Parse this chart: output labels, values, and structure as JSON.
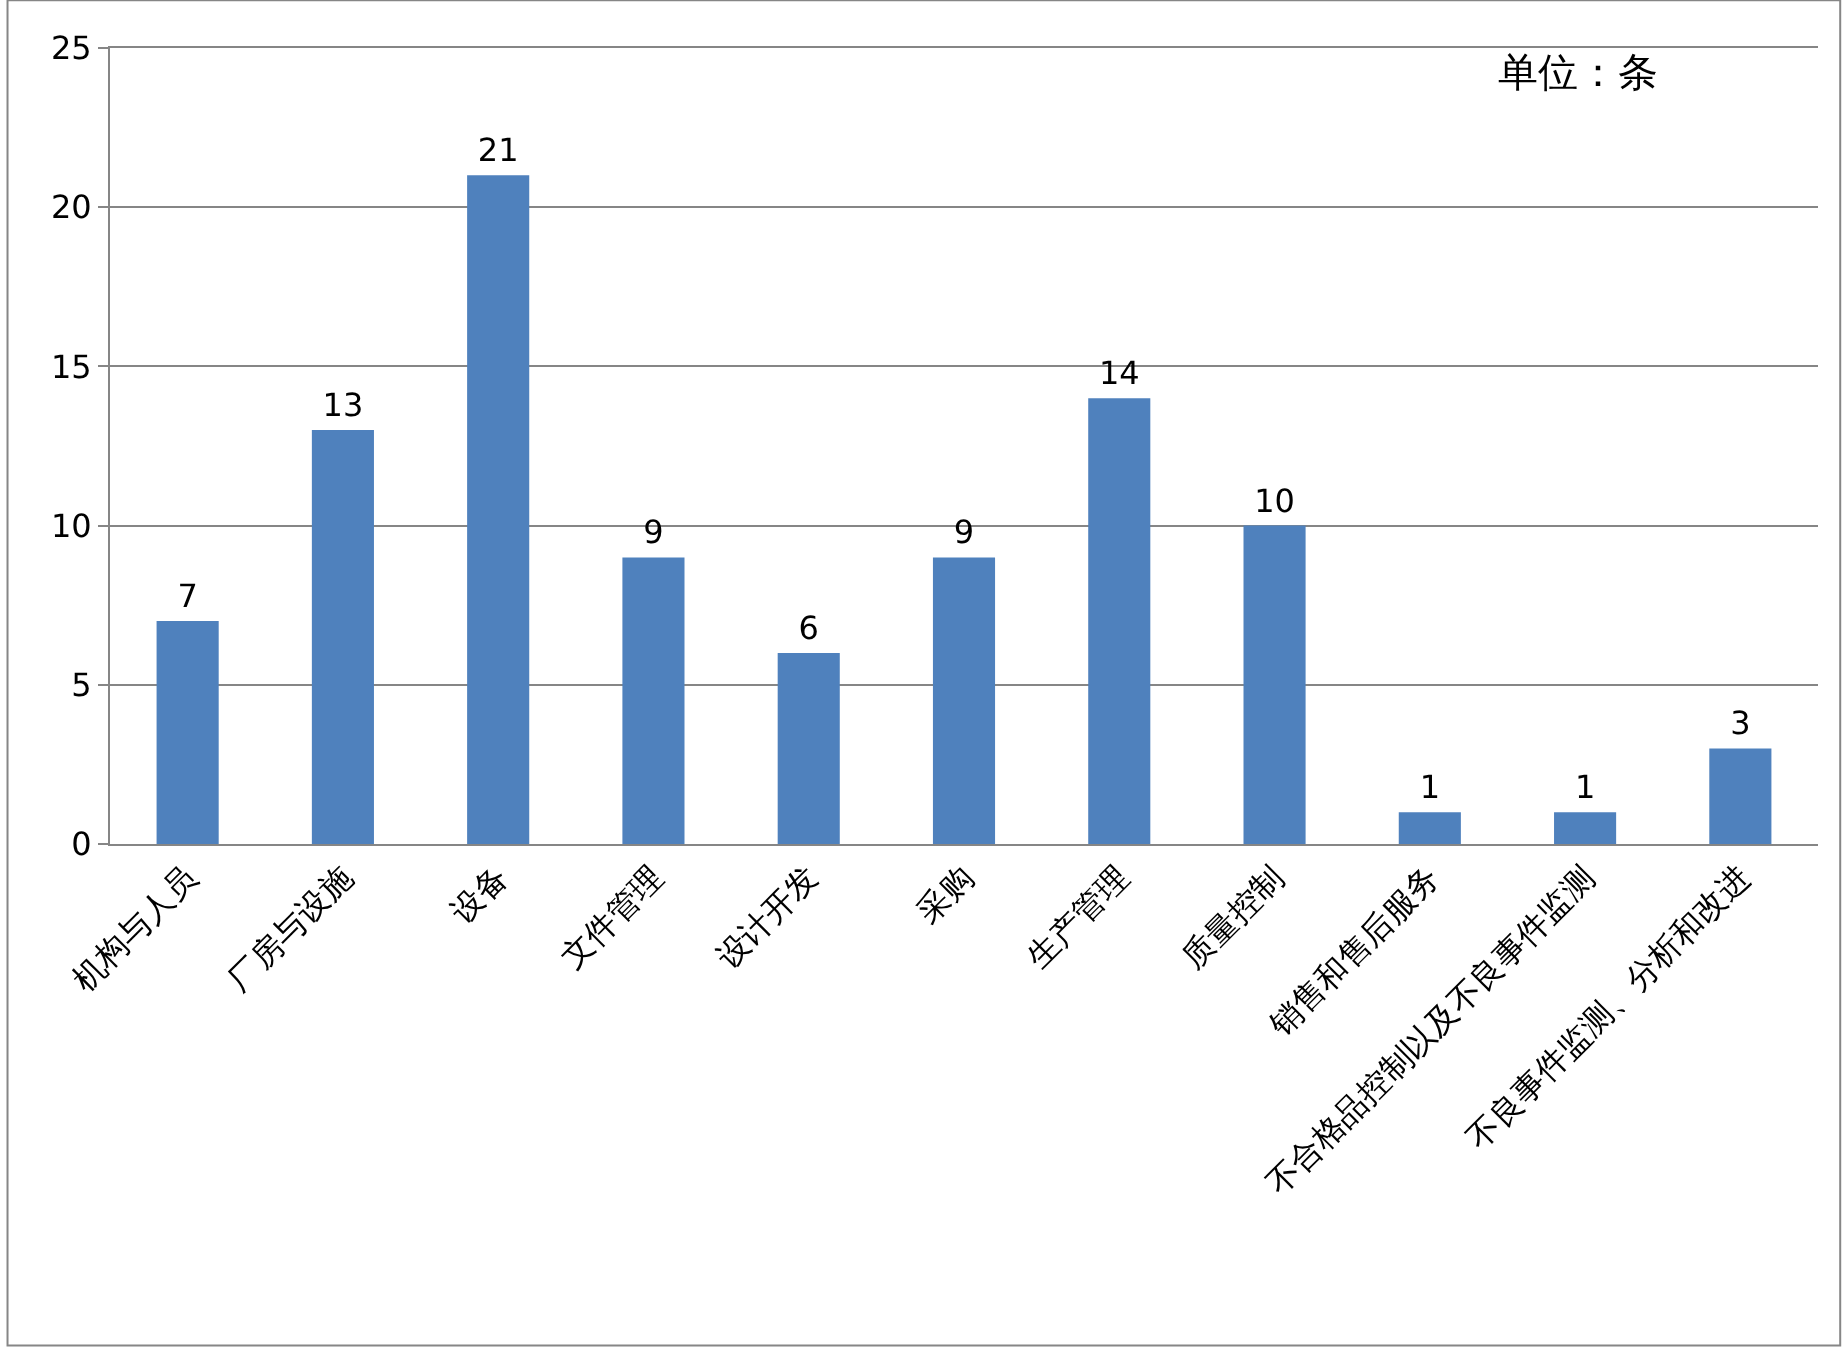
{
  "chart_data": {
    "type": "bar",
    "categories": [
      "机构与人员",
      "厂房与设施",
      "设备",
      "文件管理",
      "设计开发",
      "采购",
      "生产管理",
      "质量控制",
      "销售和售后服务",
      "不合格品控制以及不良事件监测",
      "不良事件监测、分析和改进"
    ],
    "values": [
      7,
      13,
      21,
      9,
      6,
      9,
      14,
      10,
      1,
      1,
      3
    ],
    "color": "#4f81bd",
    "ylim": [
      0,
      25
    ],
    "yticks": [
      0,
      5,
      10,
      15,
      20,
      25
    ],
    "grid": "y",
    "data_labels": true,
    "annotations": [
      "单位：条"
    ]
  }
}
